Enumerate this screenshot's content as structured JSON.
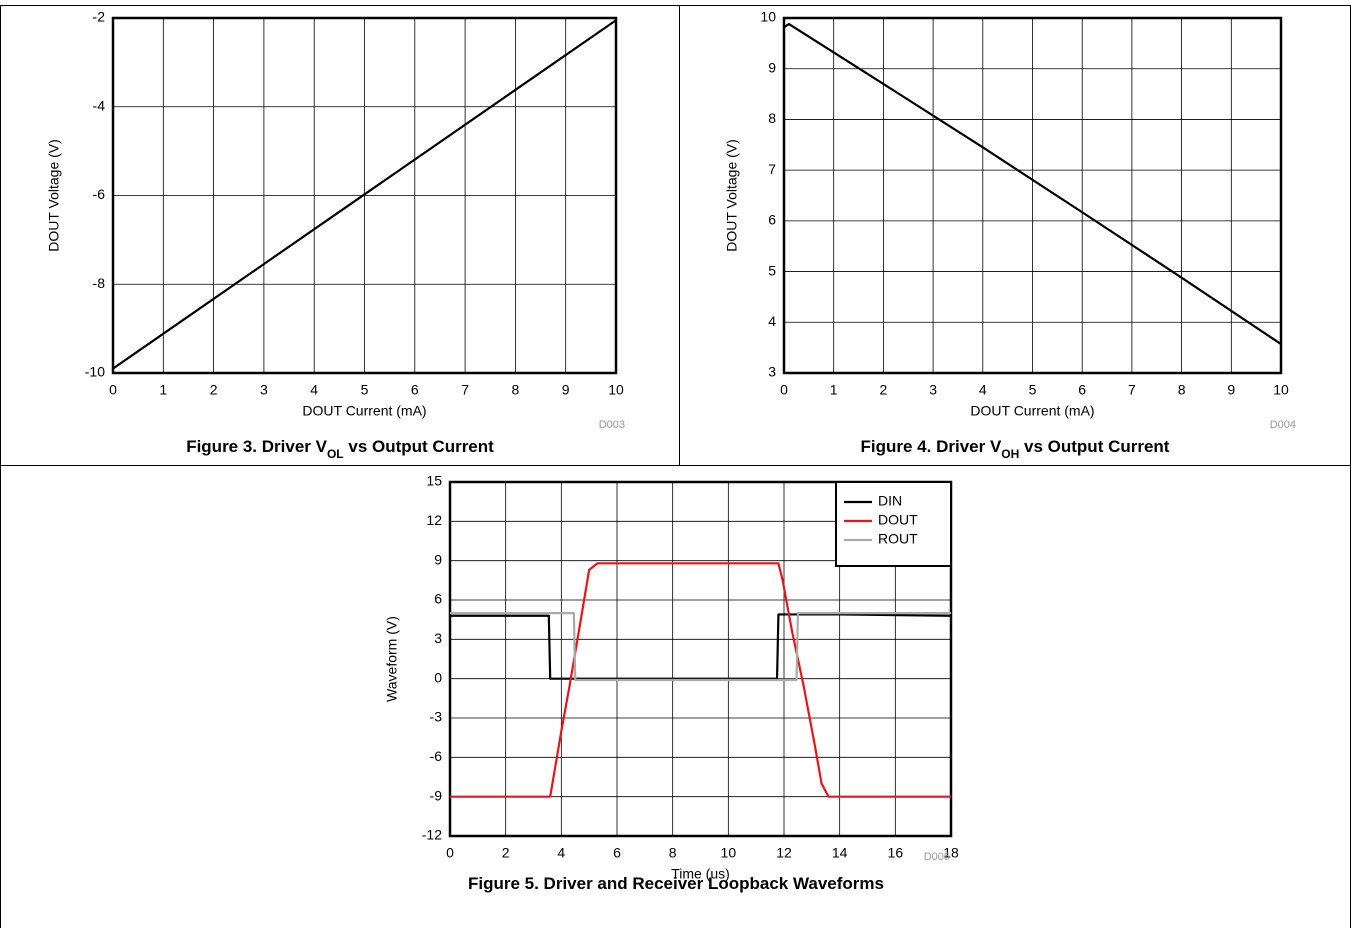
{
  "chart_data": [
    {
      "type": "line",
      "title": [
        {
          "text": "Figure 3. Driver V"
        },
        {
          "text": "OL",
          "sub": true
        },
        {
          "text": " vs Output Current"
        }
      ],
      "xlabel": "DOUT Current (mA)",
      "ylabel": "DOUT Voltage (V)",
      "code": "D003",
      "xlim": [
        0,
        10
      ],
      "ylim": [
        -10,
        -2
      ],
      "xticks": [
        0,
        1,
        2,
        3,
        4,
        5,
        6,
        7,
        8,
        9,
        10
      ],
      "yticks": [
        -10,
        -8,
        -6,
        -4,
        -2
      ],
      "grid": true,
      "series": [
        {
          "color": "#000000",
          "x": [
            0,
            10
          ],
          "values": [
            -9.9,
            -2.05
          ]
        }
      ]
    },
    {
      "type": "line",
      "title": [
        {
          "text": "Figure 4. Driver V"
        },
        {
          "text": "OH",
          "sub": true
        },
        {
          "text": " vs Output Current"
        }
      ],
      "xlabel": "DOUT Current (mA)",
      "ylabel": "DOUT Voltage (V)",
      "code": "D004",
      "xlim": [
        0,
        10
      ],
      "ylim": [
        3,
        10
      ],
      "xticks": [
        0,
        1,
        2,
        3,
        4,
        5,
        6,
        7,
        8,
        9,
        10
      ],
      "yticks": [
        3,
        4,
        5,
        6,
        7,
        8,
        9,
        10
      ],
      "grid": true,
      "series": [
        {
          "color": "#000000",
          "x": [
            0,
            0.1,
            2,
            4,
            6,
            8,
            10
          ],
          "values": [
            9.82,
            9.88,
            8.7,
            7.45,
            6.17,
            4.88,
            3.57
          ]
        }
      ]
    },
    {
      "type": "line",
      "title": [
        {
          "text": "Figure 5. Driver and Receiver Loopback Waveforms"
        }
      ],
      "xlabel": "Time (us)",
      "ylabel": "Waveform (V)",
      "code": "D005",
      "xlim": [
        0,
        18
      ],
      "ylim": [
        -12,
        15
      ],
      "xticks": [
        0,
        2,
        4,
        6,
        8,
        10,
        12,
        14,
        16,
        18
      ],
      "yticks": [
        -12,
        -9,
        -6,
        -3,
        0,
        3,
        6,
        9,
        12,
        15
      ],
      "grid": true,
      "legend": "upper right",
      "series": [
        {
          "name": "DIN",
          "color": "#000000",
          "x": [
            0,
            3.55,
            3.6,
            4.5,
            11.75,
            11.8,
            14,
            18
          ],
          "values": [
            4.8,
            4.8,
            0,
            0,
            0,
            4.9,
            4.9,
            4.8
          ]
        },
        {
          "name": "DOUT",
          "color": "#e8141b",
          "x": [
            0,
            3.6,
            4.0,
            4.3,
            4.7,
            5.0,
            5.3,
            8,
            11.8,
            11.95,
            12.3,
            12.7,
            13.1,
            13.35,
            13.6,
            15,
            18
          ],
          "values": [
            -9,
            -9,
            -4,
            -0.5,
            4.5,
            8.3,
            8.8,
            8.8,
            8.8,
            7.5,
            3.5,
            -0.5,
            -5,
            -8,
            -9,
            -9,
            -9
          ]
        },
        {
          "name": "ROUT",
          "color": "#aaaaaa",
          "x": [
            0,
            4.45,
            4.5,
            9,
            12.45,
            12.5,
            15,
            18
          ],
          "values": [
            5,
            5,
            -0.1,
            -0.1,
            -0.1,
            5,
            5,
            5
          ]
        }
      ]
    }
  ]
}
